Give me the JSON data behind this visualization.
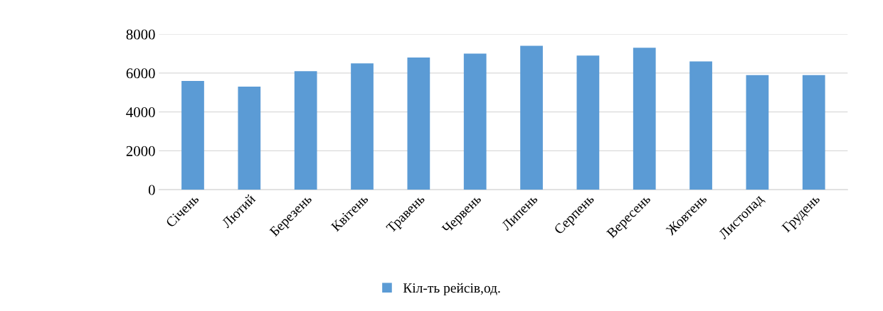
{
  "chart_data": {
    "type": "bar",
    "categories": [
      "Січень",
      "Лютий",
      "Березень",
      "Квітень",
      "Травень",
      "Червень",
      "Липень",
      "Серпень",
      "Вересень",
      "Жовтень",
      "Листопад",
      "Грудень"
    ],
    "series": [
      {
        "name": "Кіл-ть рейсів,од.",
        "color": "#5b9bd5",
        "values": [
          5600,
          5300,
          6100,
          6500,
          6800,
          7000,
          7400,
          6900,
          7300,
          6600,
          5900,
          5900
        ]
      }
    ],
    "ylim": [
      0,
      8000
    ],
    "yticks": [
      0,
      2000,
      4000,
      6000,
      8000
    ],
    "grid": "y",
    "legend": "bottom"
  }
}
